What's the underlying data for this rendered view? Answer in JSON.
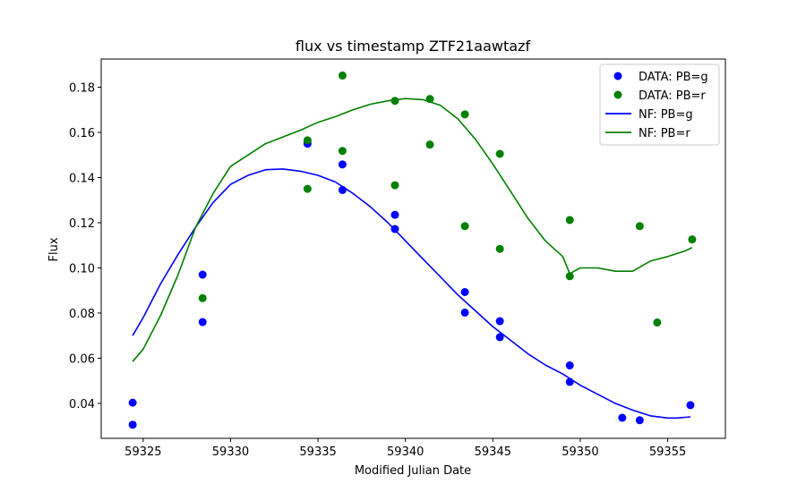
{
  "chart_data": {
    "type": "scatter",
    "title": "flux vs timestamp ZTF21aawtazf",
    "xlabel": "Modified Julian Date",
    "ylabel": "Flux",
    "xlim": [
      59322.6,
      59358.3
    ],
    "ylim": [
      0.0245,
      0.1925
    ],
    "xticks": [
      59325,
      59330,
      59335,
      59340,
      59345,
      59350,
      59355
    ],
    "yticks": [
      0.04,
      0.06,
      0.08,
      0.1,
      0.12,
      0.14,
      0.16,
      0.18
    ],
    "ytick_labels": [
      "0.04",
      "0.06",
      "0.08",
      "0.10",
      "0.12",
      "0.14",
      "0.16",
      "0.18"
    ],
    "grid": false,
    "legend_position": "upper-right",
    "colors": {
      "g": "#0000ff",
      "r": "#008000"
    },
    "scatter_series": [
      {
        "name": "DATA: PB=g",
        "color": "#0000ff",
        "points": [
          [
            59324.4,
            0.0403
          ],
          [
            59324.4,
            0.0305
          ],
          [
            59328.4,
            0.097
          ],
          [
            59328.4,
            0.076
          ],
          [
            59334.4,
            0.155
          ],
          [
            59336.4,
            0.1458
          ],
          [
            59336.4,
            0.1345
          ],
          [
            59339.4,
            0.1235
          ],
          [
            59339.4,
            0.1172
          ],
          [
            59343.4,
            0.0893
          ],
          [
            59343.4,
            0.0802
          ],
          [
            59345.4,
            0.0764
          ],
          [
            59345.4,
            0.0693
          ],
          [
            59349.4,
            0.0568
          ],
          [
            59349.4,
            0.0495
          ],
          [
            59352.4,
            0.0336
          ],
          [
            59353.4,
            0.0325
          ],
          [
            59356.3,
            0.0392
          ]
        ]
      },
      {
        "name": "DATA: PB=r",
        "color": "#008000",
        "points": [
          [
            59328.4,
            0.0866
          ],
          [
            59334.4,
            0.1565
          ],
          [
            59334.4,
            0.135
          ],
          [
            59336.4,
            0.1852
          ],
          [
            59336.4,
            0.1518
          ],
          [
            59339.4,
            0.174
          ],
          [
            59339.4,
            0.1366
          ],
          [
            59341.4,
            0.1748
          ],
          [
            59341.4,
            0.1546
          ],
          [
            59343.4,
            0.168
          ],
          [
            59343.4,
            0.1185
          ],
          [
            59345.4,
            0.1505
          ],
          [
            59345.4,
            0.1084
          ],
          [
            59349.4,
            0.1212
          ],
          [
            59349.4,
            0.0963
          ],
          [
            59353.4,
            0.1185
          ],
          [
            59354.4,
            0.0758
          ],
          [
            59356.4,
            0.1126
          ]
        ]
      }
    ],
    "line_series": [
      {
        "name": "NF: PB=g",
        "color": "#0000ff",
        "points": [
          [
            59324.4,
            0.07
          ],
          [
            59325.0,
            0.078
          ],
          [
            59326.0,
            0.093
          ],
          [
            59327.0,
            0.106
          ],
          [
            59328.0,
            0.118
          ],
          [
            59329.0,
            0.129
          ],
          [
            59330.0,
            0.137
          ],
          [
            59331.0,
            0.141
          ],
          [
            59332.0,
            0.1435
          ],
          [
            59333.0,
            0.1438
          ],
          [
            59334.0,
            0.1428
          ],
          [
            59335.0,
            0.141
          ],
          [
            59336.0,
            0.138
          ],
          [
            59337.0,
            0.133
          ],
          [
            59338.0,
            0.127
          ],
          [
            59339.0,
            0.12
          ],
          [
            59340.0,
            0.112
          ],
          [
            59341.0,
            0.104
          ],
          [
            59342.0,
            0.096
          ],
          [
            59343.0,
            0.088
          ],
          [
            59344.0,
            0.081
          ],
          [
            59345.0,
            0.074
          ],
          [
            59346.0,
            0.068
          ],
          [
            59347.0,
            0.062
          ],
          [
            59348.0,
            0.057
          ],
          [
            59349.0,
            0.053
          ],
          [
            59350.0,
            0.048
          ],
          [
            59351.0,
            0.044
          ],
          [
            59352.0,
            0.04
          ],
          [
            59353.0,
            0.037
          ],
          [
            59354.0,
            0.0345
          ],
          [
            59355.0,
            0.0335
          ],
          [
            59355.5,
            0.0335
          ],
          [
            59356.3,
            0.034
          ]
        ]
      },
      {
        "name": "NF: PB=r",
        "color": "#008000",
        "points": [
          [
            59324.4,
            0.0585
          ],
          [
            59325.0,
            0.064
          ],
          [
            59326.0,
            0.079
          ],
          [
            59327.0,
            0.097
          ],
          [
            59328.0,
            0.118
          ],
          [
            59329.0,
            0.133
          ],
          [
            59330.0,
            0.145
          ],
          [
            59331.0,
            0.15
          ],
          [
            59332.0,
            0.155
          ],
          [
            59333.0,
            0.158
          ],
          [
            59334.0,
            0.161
          ],
          [
            59335.0,
            0.1645
          ],
          [
            59336.0,
            0.167
          ],
          [
            59337.0,
            0.17
          ],
          [
            59338.0,
            0.1725
          ],
          [
            59339.0,
            0.174
          ],
          [
            59340.0,
            0.175
          ],
          [
            59341.0,
            0.1745
          ],
          [
            59342.0,
            0.172
          ],
          [
            59343.0,
            0.166
          ],
          [
            59344.0,
            0.157
          ],
          [
            59345.0,
            0.146
          ],
          [
            59346.0,
            0.134
          ],
          [
            59347.0,
            0.122
          ],
          [
            59348.0,
            0.112
          ],
          [
            59349.0,
            0.105
          ],
          [
            59349.4,
            0.0975
          ],
          [
            59350.0,
            0.1
          ],
          [
            59351.0,
            0.1
          ],
          [
            59352.0,
            0.0985
          ],
          [
            59353.0,
            0.0985
          ],
          [
            59354.0,
            0.103
          ],
          [
            59355.0,
            0.105
          ],
          [
            59356.0,
            0.1075
          ],
          [
            59356.4,
            0.109
          ]
        ]
      }
    ]
  }
}
